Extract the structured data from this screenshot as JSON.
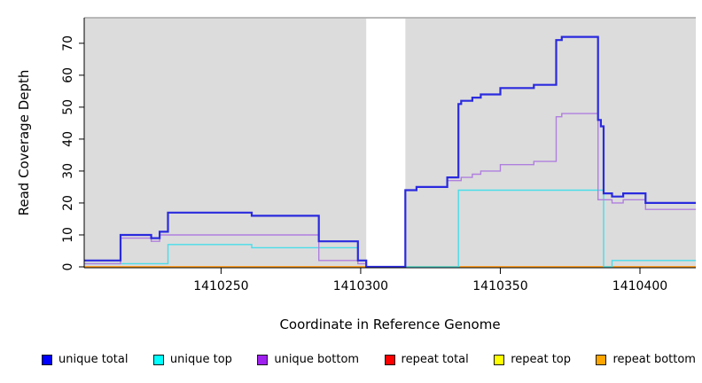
{
  "chart_data": {
    "type": "line",
    "subtype": "step",
    "title": "",
    "xlabel": "Coordinate in Reference Genome",
    "ylabel": "Read Coverage Depth",
    "xlim": [
      1410201,
      1410420
    ],
    "ylim": [
      0,
      78
    ],
    "x_ticks": [
      1410250,
      1410300,
      1410350,
      1410400
    ],
    "y_ticks": [
      0,
      10,
      20,
      30,
      40,
      50,
      60,
      70
    ],
    "grid": false,
    "plot_background": "#dcdcdc",
    "top_border_color": "#a6a6a6",
    "axis_color": "#000000",
    "gap_band": {
      "x_start": 1410302,
      "x_end": 1410316,
      "color": "#ffffff"
    },
    "legend_position": "bottom",
    "series": [
      {
        "name": "repeat total",
        "color": "#e00000",
        "width": 1.2,
        "points": [
          [
            1410201,
            0
          ],
          [
            1410420,
            0
          ]
        ]
      },
      {
        "name": "repeat top",
        "color": "#ffff00",
        "width": 1.2,
        "points": [
          [
            1410201,
            0
          ],
          [
            1410420,
            0
          ]
        ]
      },
      {
        "name": "repeat bottom",
        "color": "#ff9d20",
        "width": 1.8,
        "points": [
          [
            1410201,
            0
          ],
          [
            1410420,
            0
          ]
        ]
      },
      {
        "name": "unique top",
        "color": "#49dde9",
        "width": 1.4,
        "points": [
          [
            1410201,
            1
          ],
          [
            1410231,
            7
          ],
          [
            1410261,
            6
          ],
          [
            1410299,
            2
          ],
          [
            1410302,
            0
          ],
          [
            1410335,
            24
          ],
          [
            1410387,
            0
          ],
          [
            1410390,
            2
          ],
          [
            1410420,
            2
          ]
        ]
      },
      {
        "name": "unique bottom",
        "color": "#b07fde",
        "width": 1.4,
        "points": [
          [
            1410201,
            1
          ],
          [
            1410214,
            9
          ],
          [
            1410225,
            8
          ],
          [
            1410228,
            10
          ],
          [
            1410261,
            10
          ],
          [
            1410285,
            2
          ],
          [
            1410299,
            1
          ],
          [
            1410302,
            0
          ],
          [
            1410316,
            24
          ],
          [
            1410320,
            25
          ],
          [
            1410331,
            27
          ],
          [
            1410336,
            28
          ],
          [
            1410340,
            29
          ],
          [
            1410343,
            30
          ],
          [
            1410350,
            32
          ],
          [
            1410362,
            33
          ],
          [
            1410370,
            47
          ],
          [
            1410372,
            48
          ],
          [
            1410385,
            21
          ],
          [
            1410390,
            20
          ],
          [
            1410394,
            21
          ],
          [
            1410402,
            18
          ],
          [
            1410420,
            18
          ]
        ]
      },
      {
        "name": "unique total",
        "color": "#2a2ade",
        "width": 2.2,
        "points": [
          [
            1410201,
            2
          ],
          [
            1410214,
            10
          ],
          [
            1410225,
            9
          ],
          [
            1410228,
            11
          ],
          [
            1410231,
            17
          ],
          [
            1410261,
            16
          ],
          [
            1410285,
            8
          ],
          [
            1410299,
            2
          ],
          [
            1410302,
            0
          ],
          [
            1410316,
            24
          ],
          [
            1410320,
            25
          ],
          [
            1410331,
            28
          ],
          [
            1410335,
            51
          ],
          [
            1410336,
            52
          ],
          [
            1410340,
            53
          ],
          [
            1410343,
            54
          ],
          [
            1410350,
            56
          ],
          [
            1410362,
            57
          ],
          [
            1410370,
            71
          ],
          [
            1410372,
            72
          ],
          [
            1410385,
            46
          ],
          [
            1410386,
            44
          ],
          [
            1410387,
            23
          ],
          [
            1410390,
            22
          ],
          [
            1410394,
            23
          ],
          [
            1410402,
            20
          ],
          [
            1410420,
            20
          ]
        ]
      }
    ],
    "legend": [
      {
        "label": "unique total",
        "color": "#0000ff"
      },
      {
        "label": "unique top",
        "color": "#00ffff"
      },
      {
        "label": "unique bottom",
        "color": "#a020f0"
      },
      {
        "label": "repeat total",
        "color": "#ff0000"
      },
      {
        "label": "repeat top",
        "color": "#ffff00"
      },
      {
        "label": "repeat bottom",
        "color": "#ffa500"
      }
    ]
  }
}
